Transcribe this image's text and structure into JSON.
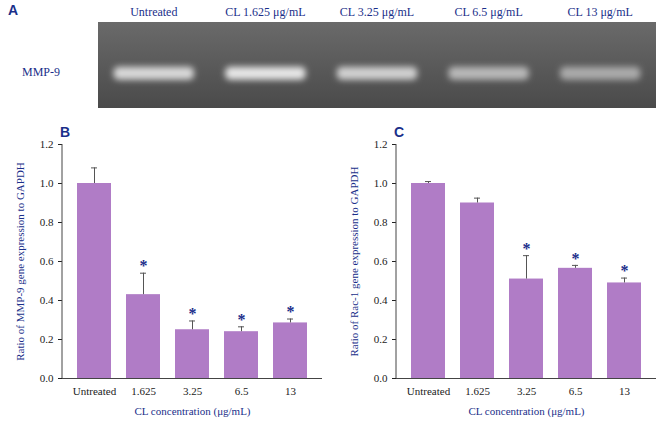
{
  "gel": {
    "title": "A",
    "row_label": "MMP-9",
    "lanes": [
      "Untreated",
      "CL 1.625 μg/mL",
      "CL 3.25 μg/mL",
      "CL 6.5 μg/mL",
      "CL 13 μg/mL"
    ]
  },
  "chart_data": [
    {
      "type": "bar",
      "title": "B",
      "x_label": "CL concentration (μg/mL)",
      "y_label": "Ratio of MMP-9 gene expression to GAPDH",
      "categories": [
        "Untreated",
        "1.625",
        "3.25",
        "6.5",
        "13"
      ],
      "values": [
        1.0,
        0.43,
        0.25,
        0.24,
        0.285
      ],
      "error": [
        0.08,
        0.11,
        0.045,
        0.025,
        0.02
      ],
      "significance": [
        null,
        "*",
        "*",
        "*",
        "*"
      ],
      "color": "#b07cc6",
      "ylim": [
        0,
        1.2
      ],
      "yticks": [
        0,
        0.2,
        0.4,
        0.6,
        0.8,
        1,
        1.2
      ],
      "grid": false
    },
    {
      "type": "bar",
      "title": "C",
      "x_label": "CL concentration (μg/mL)",
      "y_label": "Ratio of Rac-1 gene expression to GAPDH",
      "categories": [
        "Untreated",
        "1.625",
        "3.25",
        "6.5",
        "13"
      ],
      "values": [
        1.0,
        0.9,
        0.51,
        0.565,
        0.49
      ],
      "error": [
        0.01,
        0.025,
        0.12,
        0.015,
        0.025
      ],
      "significance": [
        null,
        null,
        "*",
        "*",
        "*"
      ],
      "color": "#b07cc6",
      "ylim": [
        0,
        1.2
      ],
      "yticks": [
        0,
        0.2,
        0.4,
        0.6,
        0.8,
        1,
        1.2
      ],
      "grid": false
    }
  ]
}
